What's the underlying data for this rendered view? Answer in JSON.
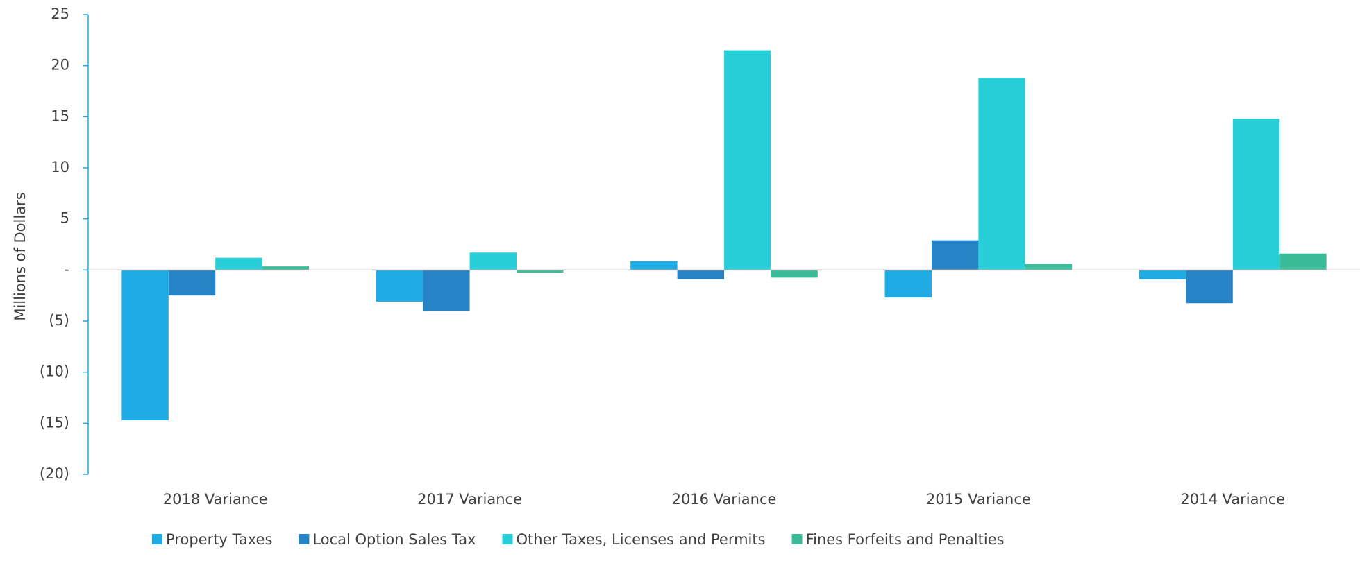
{
  "chart_data": {
    "type": "bar",
    "y_label": "Millions of Dollars",
    "categories": [
      "2018 Variance",
      "2017 Variance",
      "2016 Variance",
      "2015 Variance",
      "2014 Variance"
    ],
    "series": [
      {
        "name": "Property Taxes",
        "color": "#1fabe3",
        "values": [
          -14.7,
          -3.1,
          0.85,
          -2.7,
          -0.9
        ]
      },
      {
        "name": "Local Option Sales Tax",
        "color": "#2683c6",
        "values": [
          -2.5,
          -4.0,
          -0.9,
          2.9,
          -3.25
        ]
      },
      {
        "name": "Other Taxes, Licenses and Permits",
        "color": "#27ced7",
        "values": [
          1.2,
          1.7,
          21.5,
          18.8,
          14.8
        ]
      },
      {
        "name": "Fines Forfeits and Penalties",
        "color": "#3bbc98",
        "values": [
          0.35,
          -0.25,
          -0.75,
          0.6,
          1.6
        ]
      }
    ],
    "ylim": [
      -20,
      25
    ],
    "yticks": [
      25,
      20,
      15,
      10,
      5,
      {
        "value": 0,
        "label": "-"
      },
      {
        "value": -5,
        "label": "(5)"
      },
      {
        "value": -10,
        "label": "(10)"
      },
      {
        "value": -15,
        "label": "(15)"
      },
      {
        "value": -20,
        "label": "(20)"
      }
    ],
    "legend": "bottom"
  }
}
